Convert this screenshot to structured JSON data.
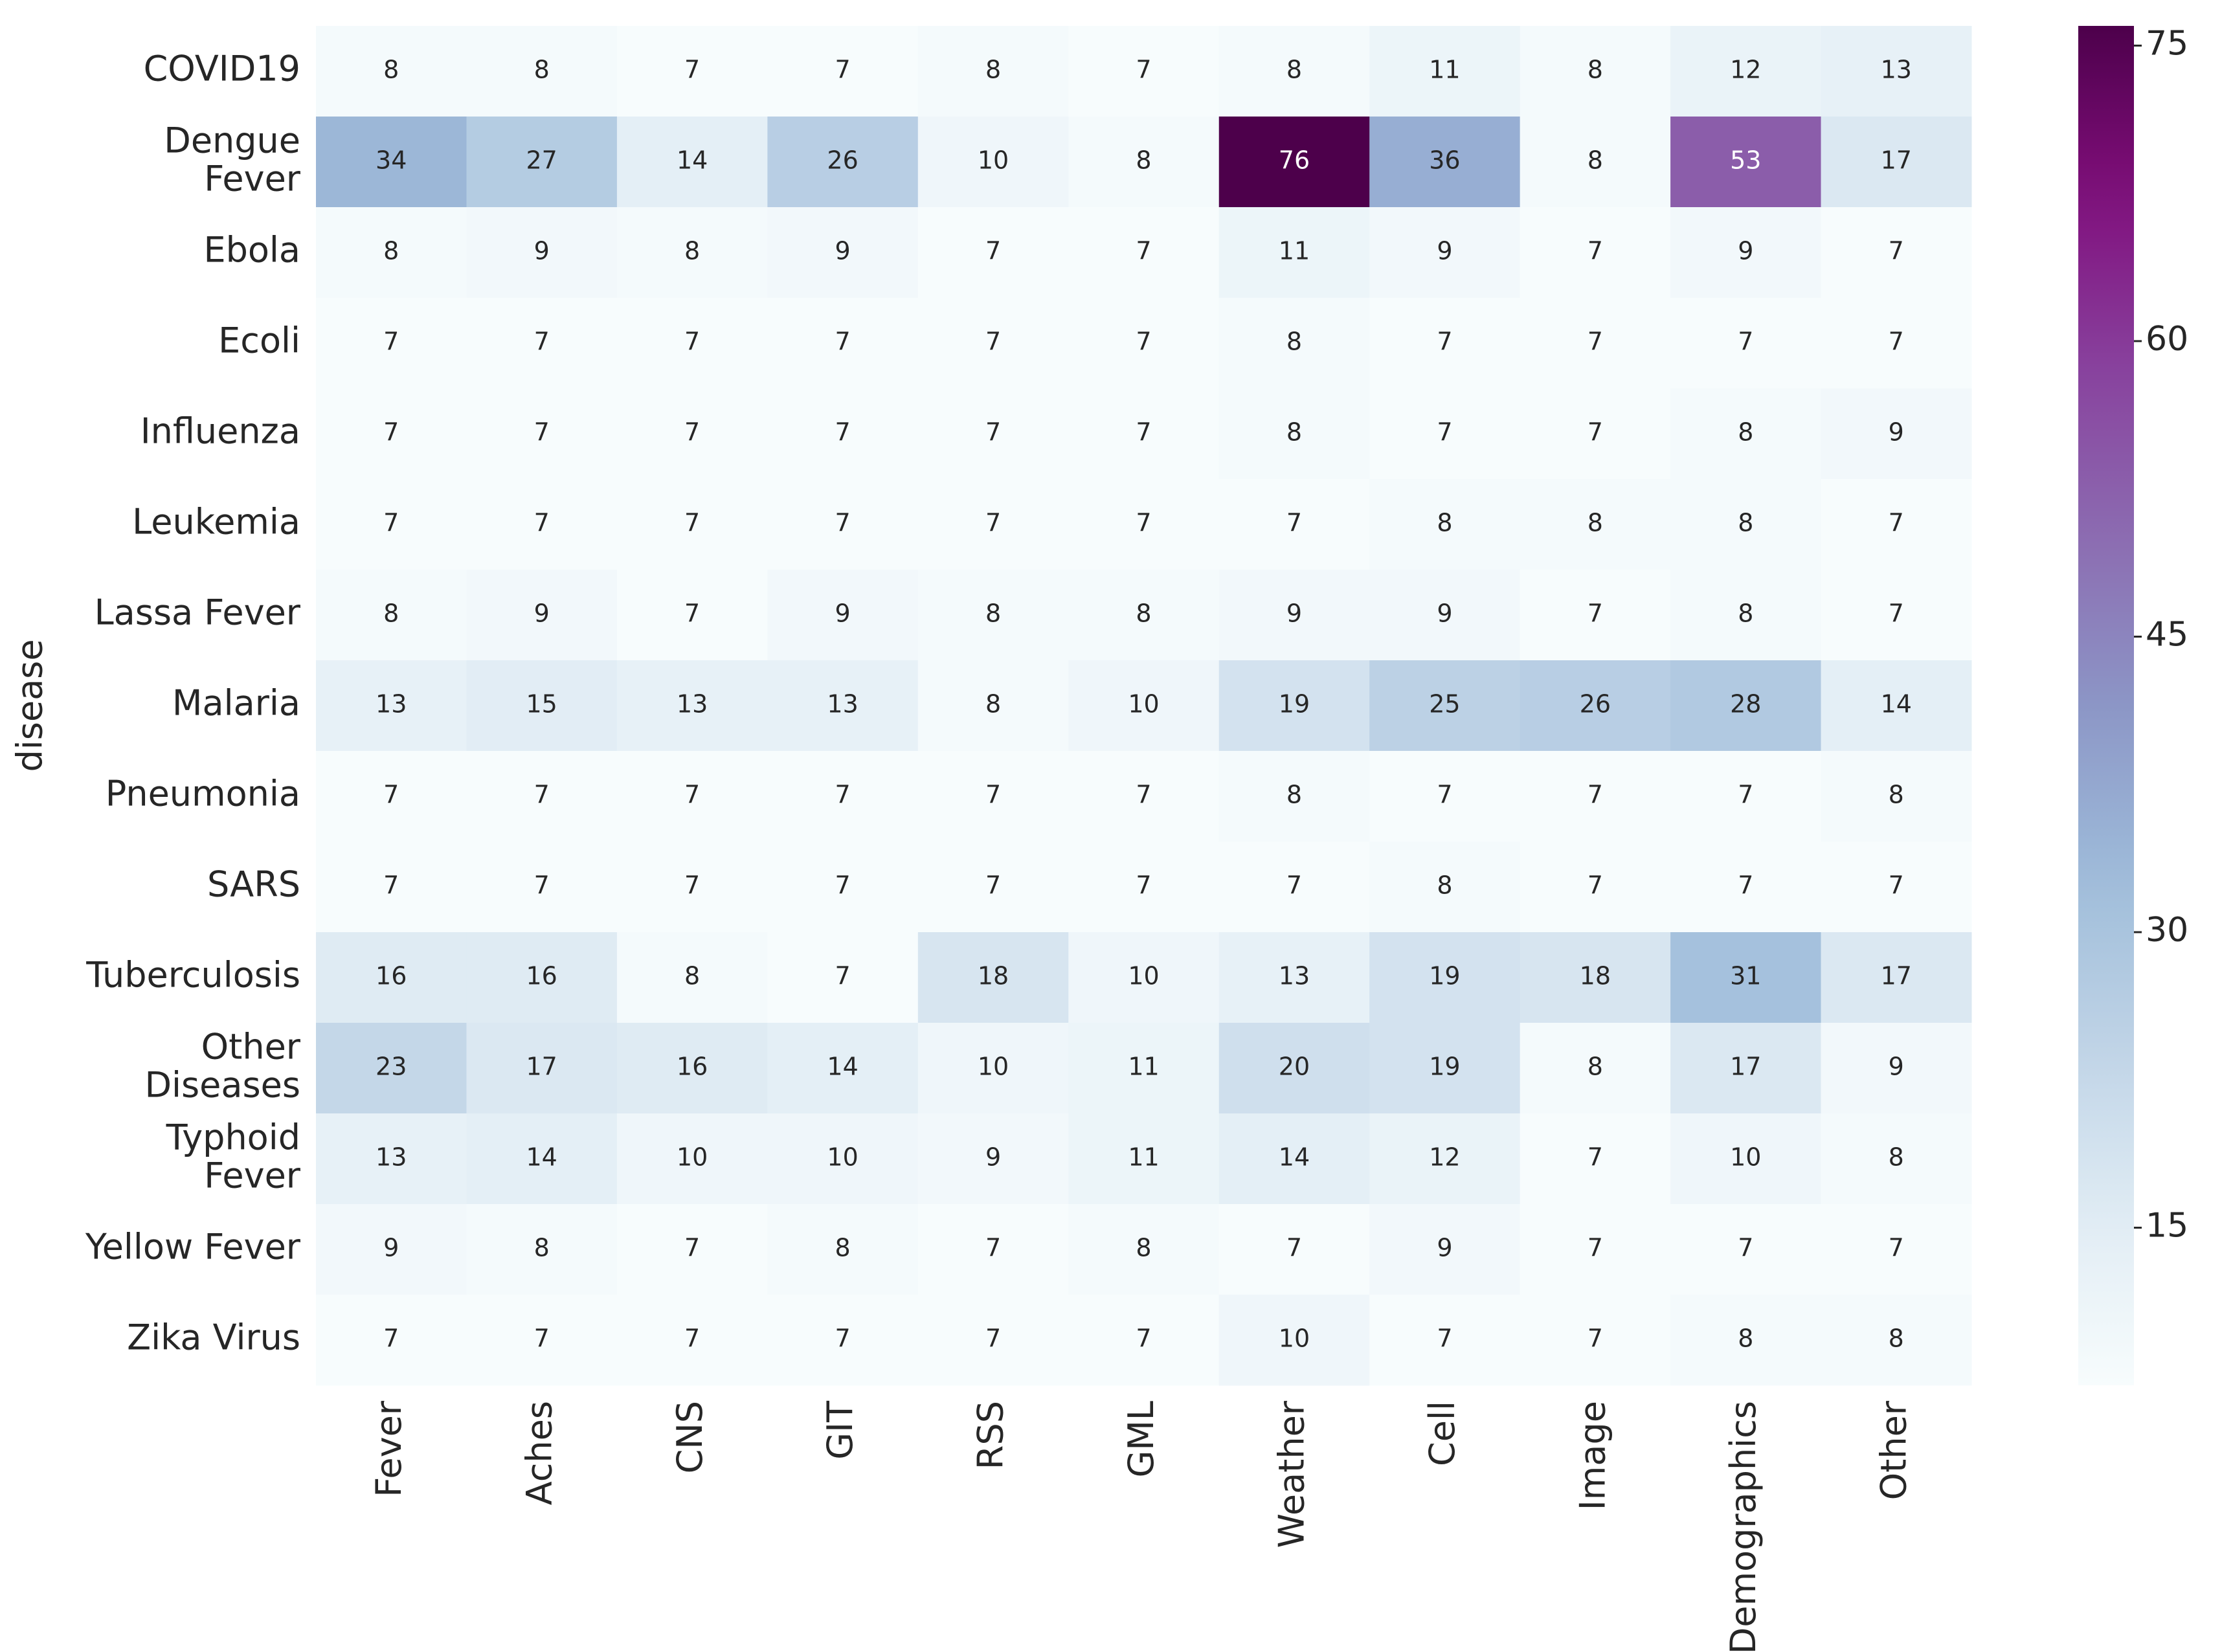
{
  "chart_data": {
    "type": "heatmap",
    "y_label": "disease",
    "rows": [
      "COVID19",
      "Dengue\nFever",
      "Ebola",
      "Ecoli",
      "Influenza",
      "Leukemia",
      "Lassa Fever",
      "Malaria",
      "Pneumonia",
      "SARS",
      "Tuberculosis",
      "Other\nDiseases",
      "Typhoid\nFever",
      "Yellow Fever",
      "Zika Virus"
    ],
    "columns": [
      "Fever",
      "Aches",
      "CNS",
      "GIT",
      "RSS",
      "GML",
      "Weather",
      "Cell",
      "Image",
      "Demographics",
      "Other"
    ],
    "values": [
      [
        8,
        8,
        7,
        7,
        8,
        7,
        8,
        11,
        8,
        12,
        13
      ],
      [
        34,
        27,
        14,
        26,
        10,
        8,
        76,
        36,
        8,
        53,
        17
      ],
      [
        8,
        9,
        8,
        9,
        7,
        7,
        11,
        9,
        7,
        9,
        7
      ],
      [
        7,
        7,
        7,
        7,
        7,
        7,
        8,
        7,
        7,
        7,
        7
      ],
      [
        7,
        7,
        7,
        7,
        7,
        7,
        8,
        7,
        7,
        8,
        9
      ],
      [
        7,
        7,
        7,
        7,
        7,
        7,
        7,
        8,
        8,
        8,
        7
      ],
      [
        8,
        9,
        7,
        9,
        8,
        8,
        9,
        9,
        7,
        8,
        7
      ],
      [
        13,
        15,
        13,
        13,
        8,
        10,
        19,
        25,
        26,
        28,
        14
      ],
      [
        7,
        7,
        7,
        7,
        7,
        7,
        8,
        7,
        7,
        7,
        8
      ],
      [
        7,
        7,
        7,
        7,
        7,
        7,
        7,
        8,
        7,
        7,
        7
      ],
      [
        16,
        16,
        8,
        7,
        18,
        10,
        13,
        19,
        18,
        31,
        17
      ],
      [
        23,
        17,
        16,
        14,
        10,
        11,
        20,
        19,
        8,
        17,
        9
      ],
      [
        13,
        14,
        10,
        10,
        9,
        11,
        14,
        12,
        7,
        10,
        8
      ],
      [
        9,
        8,
        7,
        8,
        7,
        8,
        7,
        9,
        7,
        7,
        7
      ],
      [
        7,
        7,
        7,
        7,
        7,
        7,
        10,
        7,
        7,
        8,
        8
      ]
    ],
    "colormap": [
      "#f7fcfd",
      "#e0ecf4",
      "#bfd3e6",
      "#9ebcda",
      "#8c96c6",
      "#8c6bb1",
      "#88419d",
      "#810f7c",
      "#4d004b"
    ],
    "zlim": [
      7,
      76
    ],
    "zticks": [
      15,
      30,
      45,
      60,
      75
    ]
  }
}
